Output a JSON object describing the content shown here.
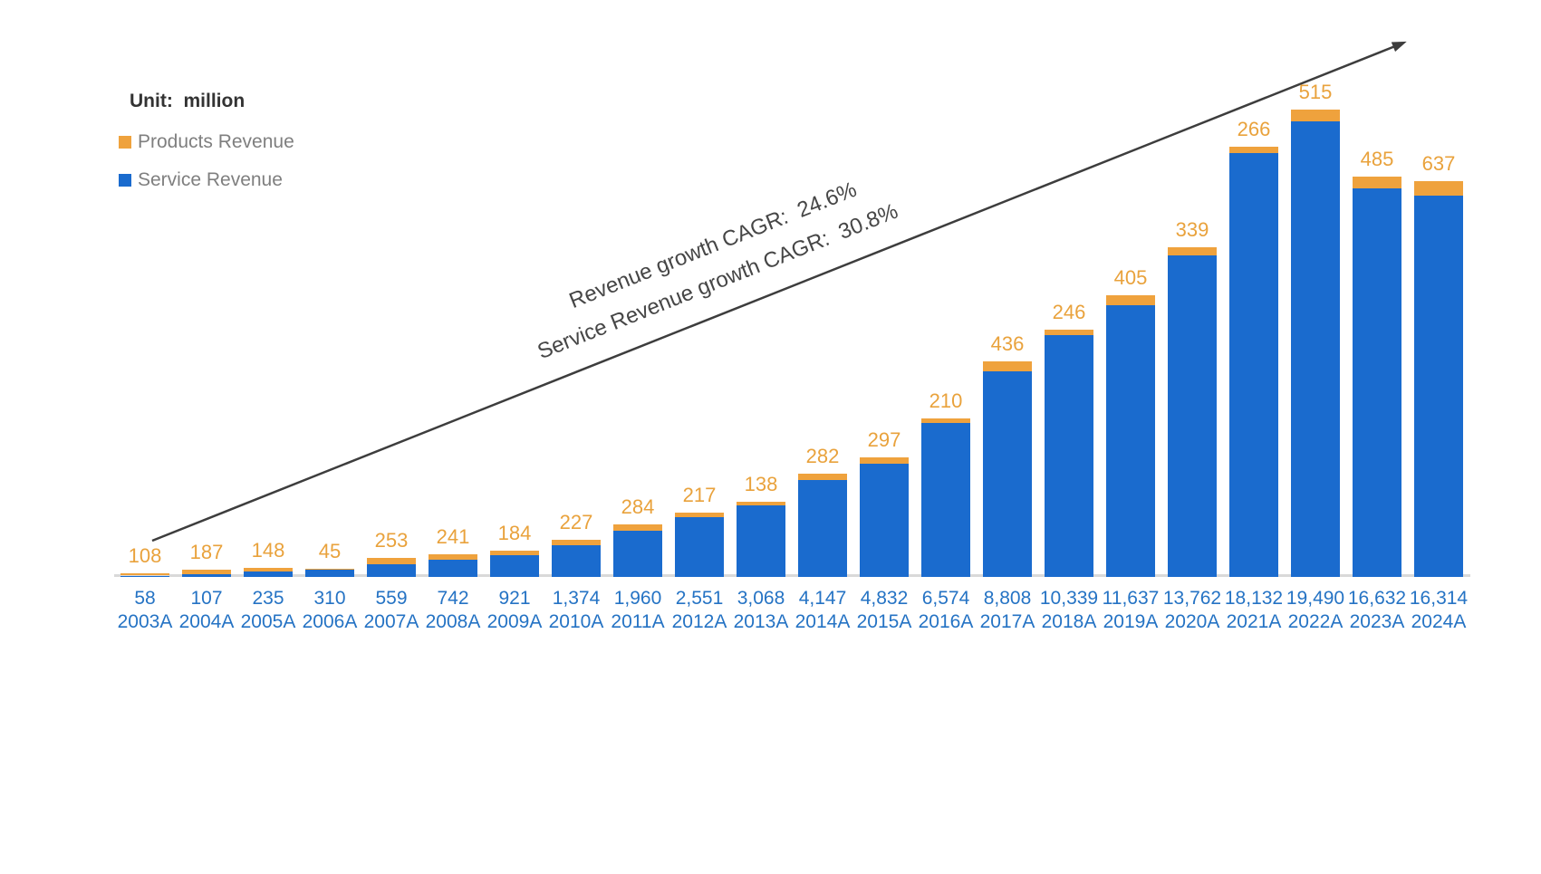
{
  "unit_label": "Unit:  million",
  "legend": [
    {
      "label": "Products Revenue",
      "color": "#efa23d"
    },
    {
      "label": "Service Revenue",
      "color": "#1a6bce"
    }
  ],
  "annotations": {
    "line1": "Revenue growth CAGR:  24.6%",
    "line2": "Service Revenue growth CAGR:  30.8%"
  },
  "chart_data": {
    "type": "bar",
    "stacked": true,
    "title": "",
    "unit": "million",
    "grid": false,
    "legend_position": "top-left",
    "categories": [
      "2003A",
      "2004A",
      "2005A",
      "2006A",
      "2007A",
      "2008A",
      "2009A",
      "2010A",
      "2011A",
      "2012A",
      "2013A",
      "2014A",
      "2015A",
      "2016A",
      "2017A",
      "2018A",
      "2019A",
      "2020A",
      "2021A",
      "2022A",
      "2023A",
      "2024A"
    ],
    "series": [
      {
        "name": "Service Revenue",
        "color": "#1a6bce",
        "values": [
          58,
          107,
          235,
          310,
          559,
          742,
          921,
          1374,
          1960,
          2551,
          3068,
          4147,
          4832,
          6574,
          8808,
          10339,
          11637,
          13762,
          18132,
          19490,
          16632,
          16314
        ]
      },
      {
        "name": "Products Revenue",
        "color": "#efa23d",
        "values": [
          108,
          187,
          148,
          45,
          253,
          241,
          184,
          227,
          284,
          217,
          138,
          282,
          297,
          210,
          436,
          246,
          405,
          339,
          266,
          515,
          485,
          637
        ]
      }
    ],
    "value_label_style": {
      "products_labels": "orange, above each bar",
      "service_labels": "blue, below axis above year labels"
    },
    "growth_arrow": {
      "cagr_revenue": "24.6%",
      "cagr_service_revenue": "30.8%"
    }
  }
}
